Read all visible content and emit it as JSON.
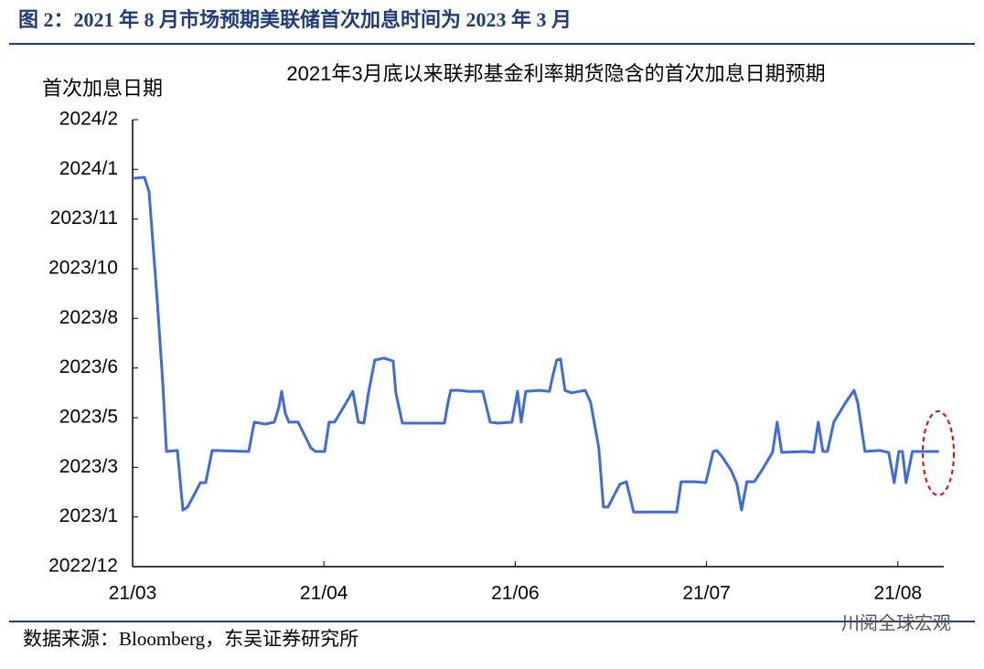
{
  "header": {
    "title": "图 2：2021 年 8 月市场预期美联储首次加息时间为 2023 年 3 月"
  },
  "chart_data": {
    "type": "line",
    "title": "2021年3月底以来联邦基金利率期货隐含的首次加息日期预期",
    "y_label": "首次加息日期",
    "color": "#3d6be3",
    "x": [
      0,
      0.062,
      0.086,
      0.129,
      0.158,
      0.177,
      0.234,
      0.263,
      0.287,
      0.325,
      0.354,
      0.382,
      0.416,
      0.607,
      0.636,
      0.693,
      0.741,
      0.765,
      0.779,
      0.798,
      0.817,
      0.865,
      0.932,
      0.956,
      1.004,
      1.027,
      1.056,
      1.104,
      1.151,
      1.18,
      1.209,
      1.233,
      1.266,
      1.314,
      1.362,
      1.376,
      1.41,
      1.63,
      1.649,
      1.663,
      1.706,
      1.754,
      1.83,
      1.869,
      1.912,
      1.983,
      2.012,
      2.031,
      2.055,
      2.127,
      2.179,
      2.198,
      2.217,
      2.237,
      2.26,
      2.294,
      2.366,
      2.394,
      2.437,
      2.461,
      2.485,
      2.547,
      2.581,
      2.619,
      2.844,
      2.867,
      2.939,
      2.996,
      3.035,
      3.054,
      3.082,
      3.13,
      3.159,
      3.183,
      3.211,
      3.25,
      3.297,
      3.345,
      3.369,
      3.393,
      3.513,
      3.56,
      3.584,
      3.608,
      3.632,
      3.665,
      3.728,
      3.771,
      3.79,
      3.828,
      3.904,
      3.952,
      3.981,
      4.005,
      4.024,
      4.043,
      4.076,
      4.134,
      4.215
    ],
    "values": [
      7.82,
      7.84,
      7.55,
      5.34,
      3.68,
      2.32,
      2.34,
      1.14,
      1.2,
      1.47,
      1.69,
      1.69,
      2.34,
      2.32,
      2.91,
      2.87,
      2.91,
      3.22,
      3.53,
      3.09,
      2.91,
      2.91,
      2.39,
      2.32,
      2.32,
      2.91,
      2.91,
      3.22,
      3.53,
      2.91,
      2.89,
      3.5,
      4.16,
      4.2,
      4.14,
      3.5,
      2.89,
      2.89,
      3.31,
      3.55,
      3.55,
      3.53,
      3.53,
      2.91,
      2.89,
      2.91,
      3.53,
      2.91,
      3.53,
      3.55,
      3.53,
      3.87,
      4.16,
      4.18,
      3.55,
      3.5,
      3.55,
      3.31,
      2.39,
      1.2,
      1.2,
      1.66,
      1.71,
      1.1,
      1.1,
      1.71,
      1.71,
      1.69,
      2.32,
      2.34,
      2.21,
      1.93,
      1.66,
      1.14,
      1.71,
      1.71,
      1.99,
      2.3,
      2.91,
      2.3,
      2.32,
      2.3,
      2.91,
      2.32,
      2.32,
      2.91,
      3.31,
      3.55,
      3.31,
      2.32,
      2.34,
      2.3,
      1.69,
      2.32,
      2.32,
      1.69,
      2.32,
      2.32,
      2.32
    ],
    "xlim": [
      0,
      4.24
    ],
    "xticks": [
      {
        "value": 0,
        "label": "21/03"
      },
      {
        "value": 1,
        "label": "21/04"
      },
      {
        "value": 2,
        "label": "21/06"
      },
      {
        "value": 3,
        "label": "21/07"
      },
      {
        "value": 4,
        "label": "21/08"
      }
    ],
    "ylim": [
      0,
      9
    ],
    "yticks": [
      {
        "value": 0,
        "label": "2022/12"
      },
      {
        "value": 1,
        "label": "2023/1"
      },
      {
        "value": 2,
        "label": "2023/3"
      },
      {
        "value": 3,
        "label": "2023/5"
      },
      {
        "value": 4,
        "label": "2023/6"
      },
      {
        "value": 5,
        "label": "2023/8"
      },
      {
        "value": 6,
        "label": "2023/10"
      },
      {
        "value": 7,
        "label": "2023/11"
      },
      {
        "value": 8,
        "label": "2024/1"
      },
      {
        "value": 9,
        "label": "2024/2"
      }
    ]
  },
  "footer": {
    "source": "数据来源：Bloomberg，东吴证券研究所",
    "watermark": "川阅全球宏观"
  }
}
